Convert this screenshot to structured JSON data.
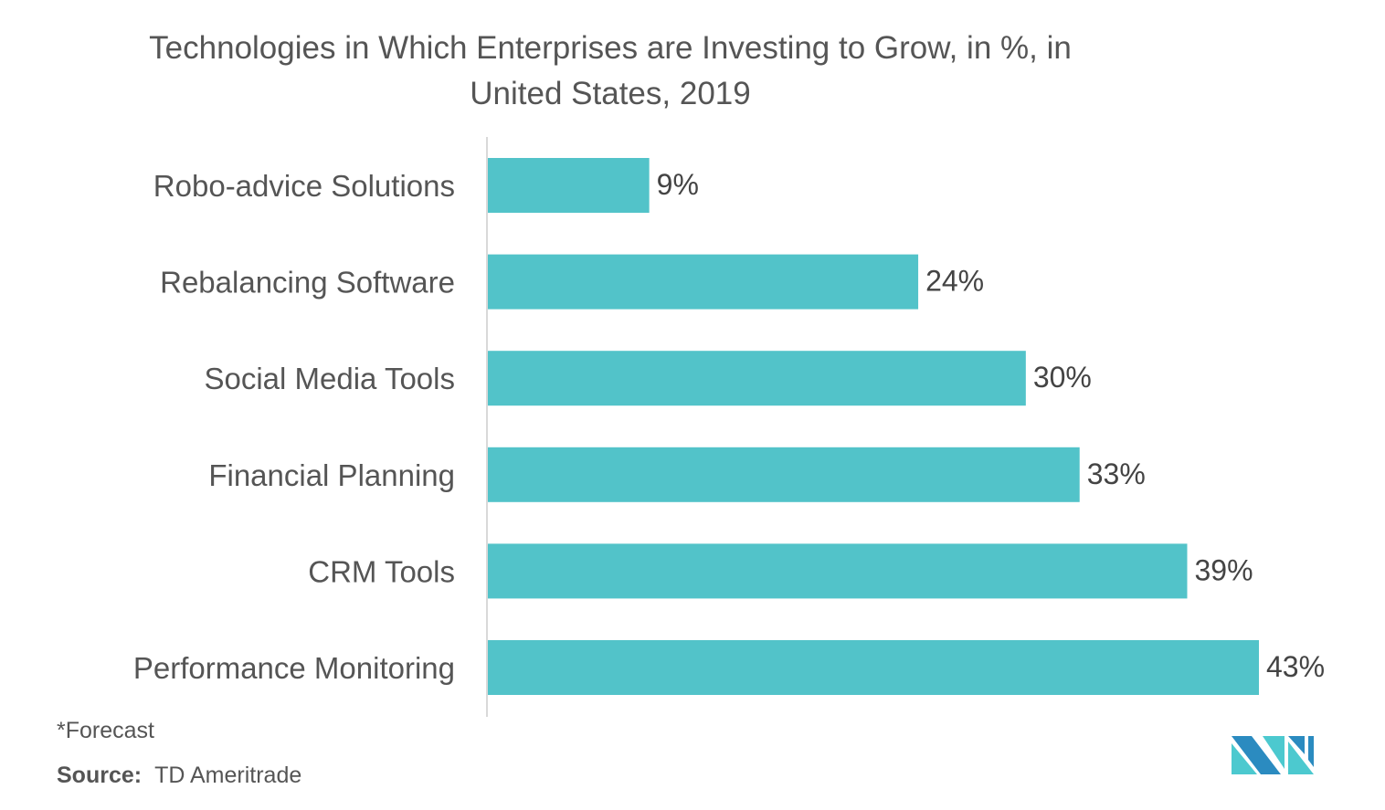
{
  "chart_data": {
    "type": "bar",
    "orientation": "horizontal",
    "title": "Technologies in Which Enterprises are Investing to Grow, in %, in United States, 2019",
    "title_lines": [
      "Technologies in Which Enterprises are Investing to Grow, in %, in",
      "United States, 2019"
    ],
    "categories": [
      "Robo-advice Solutions",
      "Rebalancing Software",
      "Social Media Tools",
      "Financial Planning",
      "CRM Tools",
      "Performance Monitoring"
    ],
    "values": [
      9,
      24,
      30,
      33,
      39,
      43
    ],
    "value_labels": [
      "9%",
      "24%",
      "30%",
      "33%",
      "39%",
      "43%"
    ],
    "xlabel": "",
    "ylabel": "",
    "xlim": [
      0,
      43
    ],
    "grid": false,
    "legend": "none",
    "bar_color": "#52C3C9",
    "axis_color": "#D9D9D9"
  },
  "footnote": "*Forecast",
  "source": {
    "label": "Source:",
    "value": "TD Ameritrade"
  },
  "logo": {
    "icon": "mordor-intelligence-logo",
    "colors": [
      "#2B8BC0",
      "#4CC9CF"
    ]
  }
}
